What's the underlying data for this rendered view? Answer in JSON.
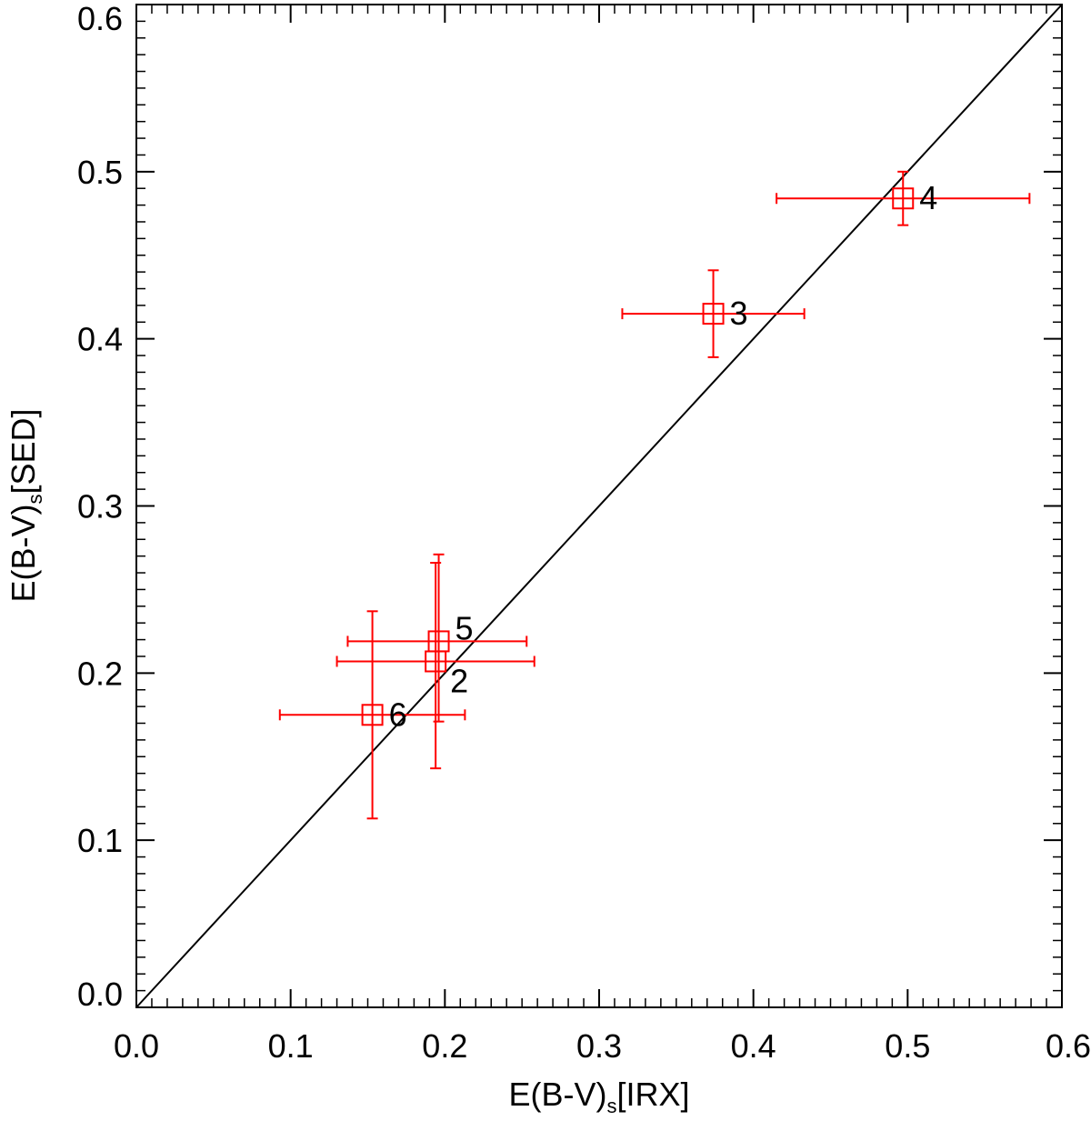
{
  "chart_data": {
    "type": "scatter",
    "title": "",
    "xlabel": {
      "main": "E(B-V)",
      "sub": "s",
      "suffix": "[IRX]"
    },
    "ylabel": {
      "main": "E(B-V)",
      "sub": "s",
      "suffix": "[SED]"
    },
    "xlim": [
      0.0,
      0.6
    ],
    "ylim": [
      0.0,
      0.6
    ],
    "x_ticks": [
      "0.0",
      "0.1",
      "0.2",
      "0.3",
      "0.4",
      "0.5",
      "0.6"
    ],
    "y_ticks": [
      "0.0",
      "0.1",
      "0.2",
      "0.3",
      "0.4",
      "0.5",
      "0.6"
    ],
    "grid": false,
    "reference_line": {
      "type": "one-to-one",
      "color": "#000000"
    },
    "marker": {
      "shape": "open-square",
      "color": "#ff0000"
    },
    "points": [
      {
        "label": "2",
        "x": 0.194,
        "y": 0.207,
        "xerr": [
          0.13,
          0.258
        ],
        "yerr": [
          0.143,
          0.266
        ]
      },
      {
        "label": "3",
        "x": 0.374,
        "y": 0.415,
        "xerr": [
          0.315,
          0.433
        ],
        "yerr": [
          0.389,
          0.441
        ]
      },
      {
        "label": "4",
        "x": 0.497,
        "y": 0.484,
        "xerr": [
          0.415,
          0.579
        ],
        "yerr": [
          0.468,
          0.5
        ]
      },
      {
        "label": "5",
        "x": 0.196,
        "y": 0.219,
        "xerr": [
          0.137,
          0.253
        ],
        "yerr": [
          0.171,
          0.271
        ]
      },
      {
        "label": "6",
        "x": 0.153,
        "y": 0.175,
        "xerr": [
          0.093,
          0.213
        ],
        "yerr": [
          0.113,
          0.237
        ]
      }
    ]
  }
}
